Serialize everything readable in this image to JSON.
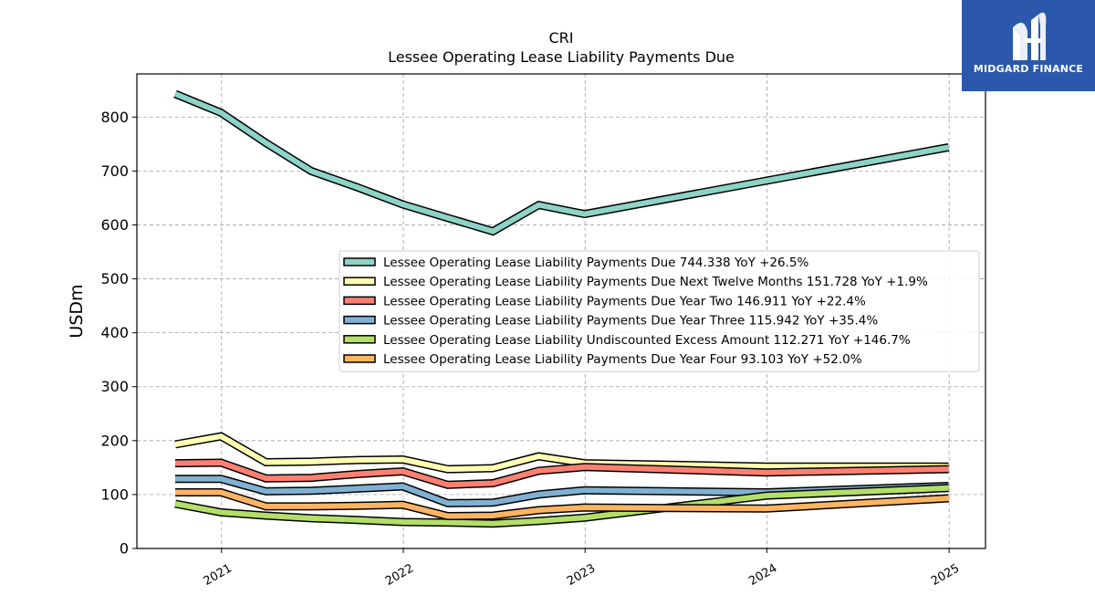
{
  "chart_data": {
    "type": "line",
    "title": "CRI",
    "subtitle": "Lessee Operating Lease Liability Payments Due",
    "xlabel": "",
    "ylabel": "USDm",
    "ylim": [
      0,
      880
    ],
    "xlim": [
      "2020-07-15",
      "2025-03-15"
    ],
    "yticks": [
      0,
      100,
      200,
      300,
      400,
      500,
      600,
      700,
      800
    ],
    "xticks": [
      "2021",
      "2022",
      "2023",
      "2024",
      "2025"
    ],
    "grid": true,
    "legend_position": "center-right",
    "x": [
      "2020-09-30",
      "2020-12-31",
      "2021-03-31",
      "2021-06-30",
      "2021-09-30",
      "2021-12-31",
      "2022-03-31",
      "2022-06-30",
      "2022-09-30",
      "2022-12-31",
      "2023-12-31",
      "2024-12-31"
    ],
    "series": [
      {
        "name": "Lessee Operating Lease Liability Payments Due",
        "legend": "Lessee Operating Lease Liability Payments Due  744.338 YoY +26.5%",
        "color": "#8dd3c7",
        "values": [
          843,
          808,
          752,
          700,
          670,
          638,
          613,
          588,
          637,
          620,
          682,
          744
        ]
      },
      {
        "name": "Lessee Operating Lease Liability Payments Due Next Twelve Months",
        "legend": "Lessee Operating Lease Liability Payments Due Next Twelve Months  151.728 YoY +1.9%",
        "color": "#ffffb3",
        "values": [
          193,
          208,
          160,
          161,
          164,
          165,
          147,
          149,
          171,
          158,
          152,
          152
        ]
      },
      {
        "name": "Lessee Operating Lease Liability Payments Due Year Two",
        "legend": "Lessee Operating Lease Liability Payments Due Year Two  146.911 YoY +22.4%",
        "color": "#fb8072",
        "values": [
          158,
          159,
          130,
          131,
          138,
          143,
          118,
          121,
          144,
          151,
          141,
          147
        ]
      },
      {
        "name": "Lessee Operating Lease Liability Payments Due Year Three",
        "legend": "Lessee Operating Lease Liability Payments Due Year Three  115.942 YoY +35.4%",
        "color": "#80b1d3",
        "values": [
          129,
          129,
          106,
          107,
          111,
          115,
          84,
          85,
          100,
          108,
          104,
          116
        ]
      },
      {
        "name": "Lessee Operating Lease Liability Undiscounted Excess Amount",
        "legend": "Lessee Operating Lease Liability Undiscounted Excess Amount  112.271 YoY +146.7%",
        "color": "#b3de69",
        "values": [
          83,
          67,
          61,
          56,
          53,
          49,
          48,
          46,
          51,
          57,
          98,
          112
        ]
      },
      {
        "name": "Lessee Operating Lease Liability Payments Due Year Four",
        "legend": "Lessee Operating Lease Liability Payments Due Year Four  93.103 YoY +52.0%",
        "color": "#fdb462",
        "values": [
          104,
          104,
          78,
          78,
          79,
          81,
          60,
          61,
          71,
          76,
          74,
          93
        ]
      }
    ]
  },
  "logo": {
    "text": "MIDGARD FINANCE",
    "background": "#2b58ab"
  }
}
